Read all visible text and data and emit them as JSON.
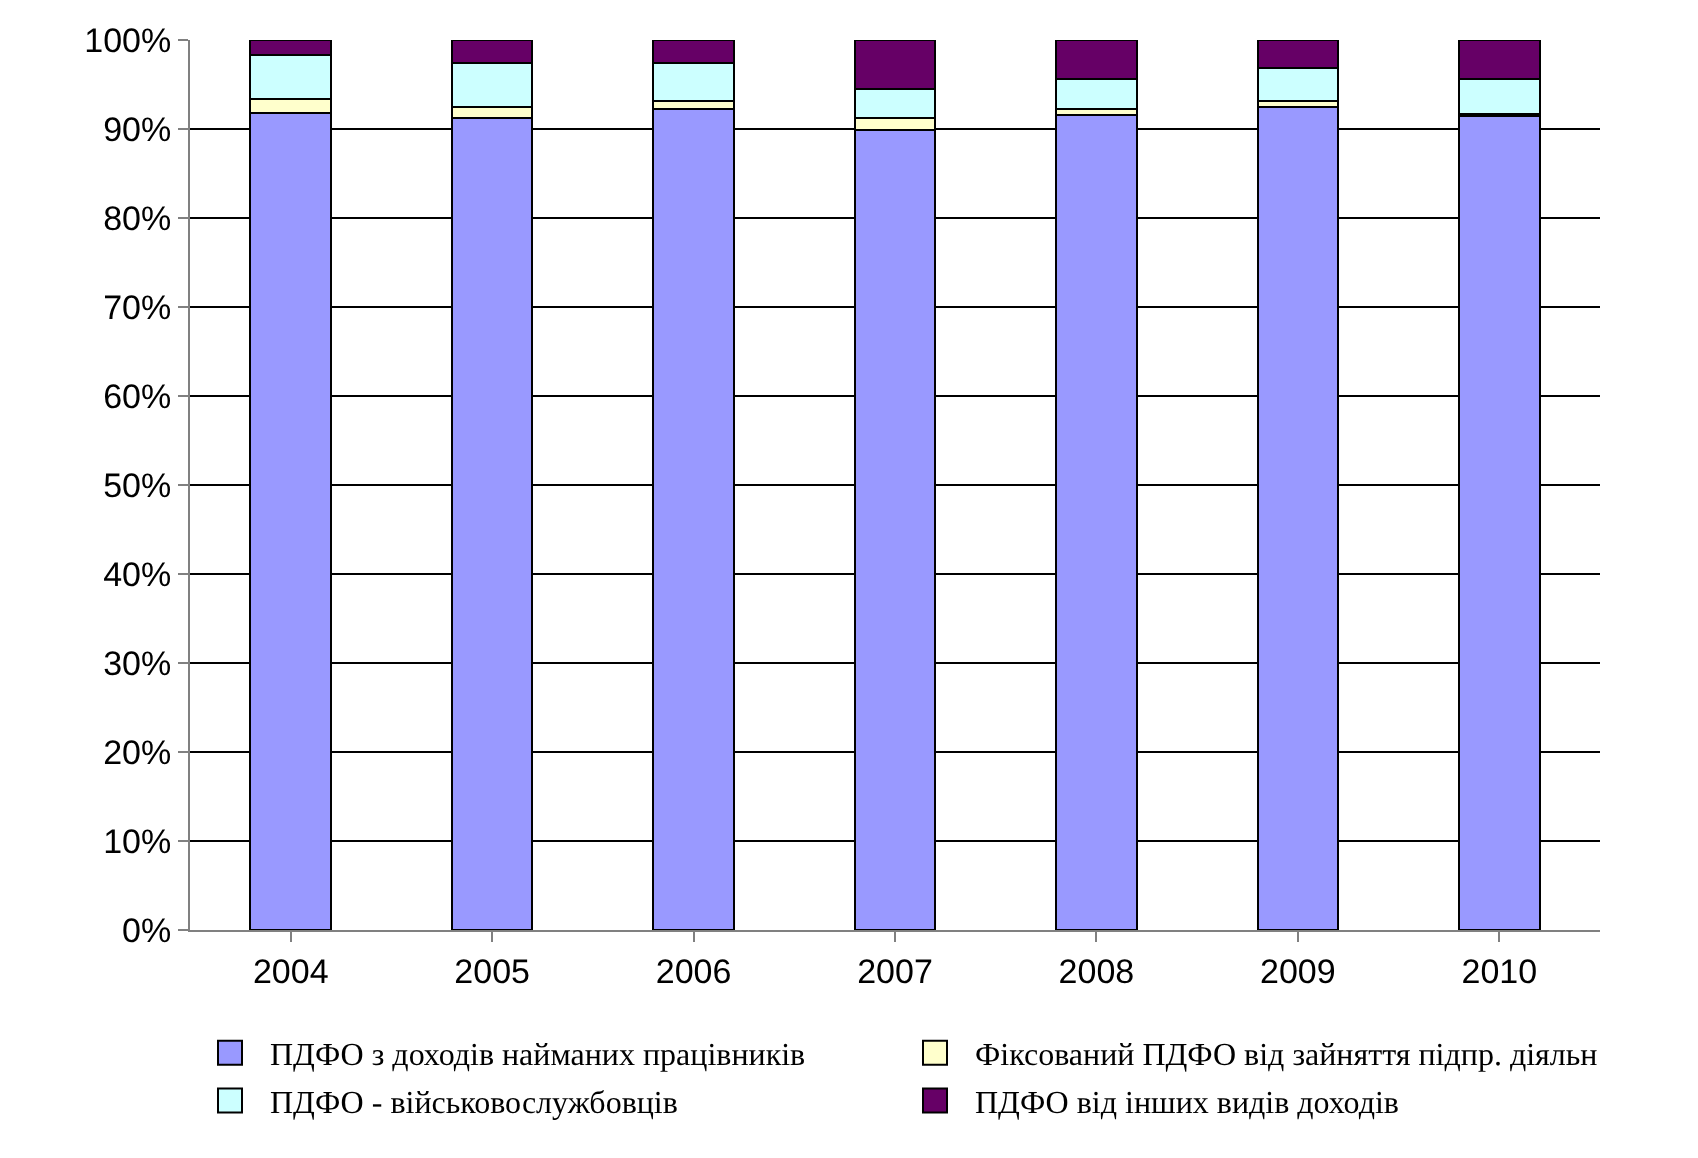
{
  "chart_data": {
    "type": "bar",
    "stacked": true,
    "categories": [
      "2004",
      "2005",
      "2006",
      "2007",
      "2008",
      "2009",
      "2010"
    ],
    "series": [
      {
        "name": "ПДФО з доходів найманих працівників",
        "color": "#9999ff",
        "values": [
          91.8,
          91.2,
          92.2,
          89.9,
          91.6,
          92.5,
          91.5
        ]
      },
      {
        "name": "Фіксований ПДФО від зайняття підпр. діяльн",
        "color": "#ffffcc",
        "values": [
          1.6,
          1.3,
          0.9,
          1.3,
          0.6,
          0.7,
          0.2
        ]
      },
      {
        "name": "ПДФО - військовослужбовців",
        "color": "#ccffff",
        "values": [
          4.9,
          4.9,
          4.3,
          3.3,
          3.4,
          3.7,
          3.9
        ]
      },
      {
        "name": "ПДФО від інших видів доходів",
        "color": "#660066",
        "values": [
          1.7,
          2.6,
          2.6,
          5.5,
          4.4,
          3.1,
          4.4
        ]
      }
    ],
    "ylim": [
      0,
      100
    ],
    "yticks": [
      {
        "value": 0,
        "label": "0%"
      },
      {
        "value": 10,
        "label": "10%"
      },
      {
        "value": 20,
        "label": "20%"
      },
      {
        "value": 30,
        "label": "30%"
      },
      {
        "value": 40,
        "label": "40%"
      },
      {
        "value": 50,
        "label": "50%"
      },
      {
        "value": 60,
        "label": "60%"
      },
      {
        "value": 70,
        "label": "70%"
      },
      {
        "value": 80,
        "label": "80%"
      },
      {
        "value": 90,
        "label": "90%"
      },
      {
        "value": 100,
        "label": "100%"
      }
    ],
    "grid": "y",
    "legend": "bottom"
  }
}
